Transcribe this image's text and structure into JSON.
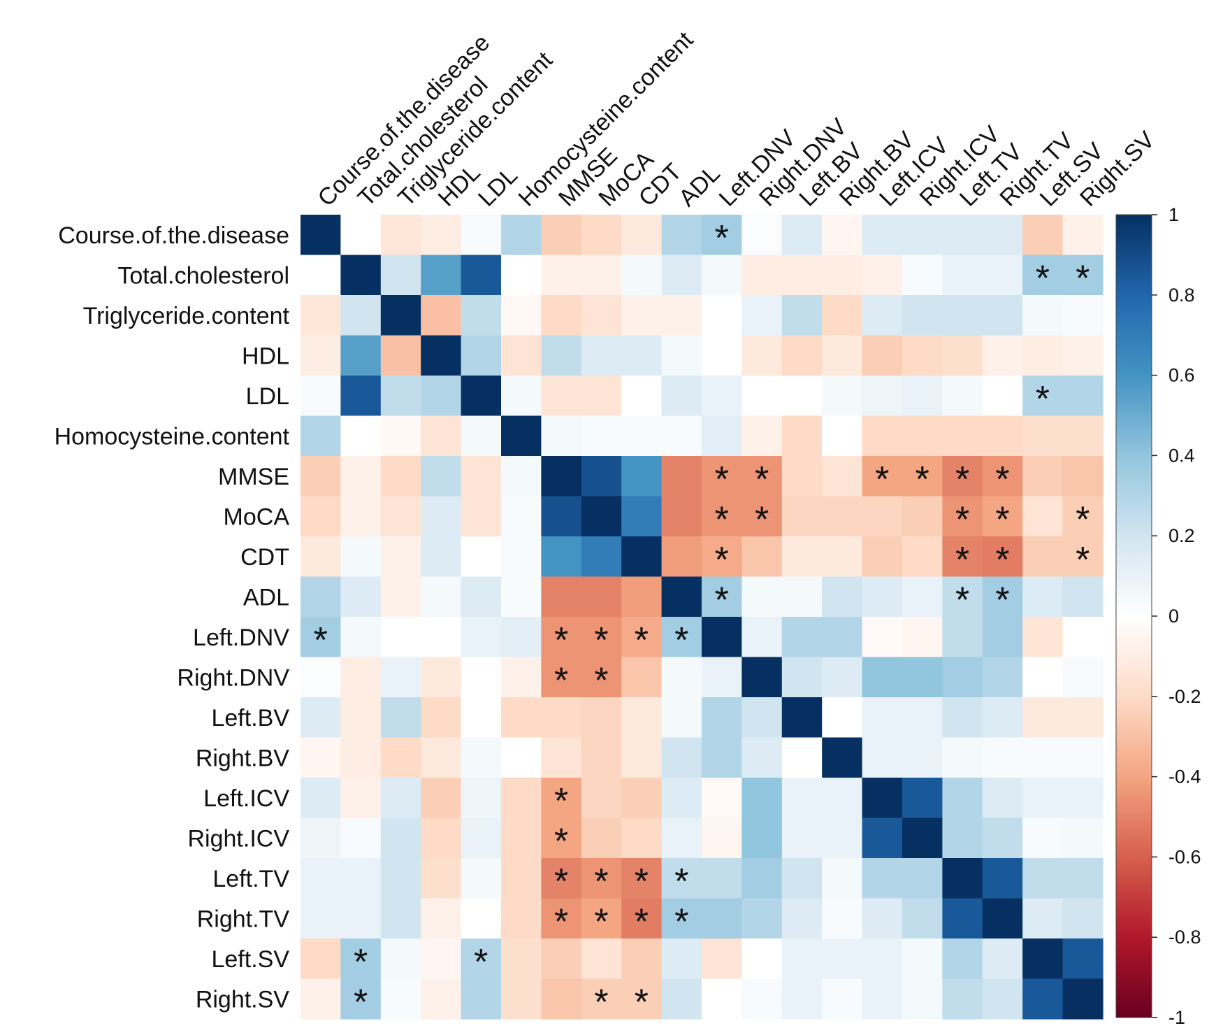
{
  "chart_data": {
    "type": "heatmap",
    "title": "",
    "variables": [
      "Course.of.the.disease",
      "Total.cholesterol",
      "Triglyceride.content",
      "HDL",
      "LDL",
      "Homocysteine.content",
      "MMSE",
      "MoCA",
      "CDT",
      "ADL",
      "Left.DNV",
      "Right.DNV",
      "Left.BV",
      "Right.BV",
      "Left.ICV",
      "Right.ICV",
      "Left.TV",
      "Right.TV",
      "Left.SV",
      "Right.SV"
    ],
    "matrix": [
      [
        1.0,
        0.0,
        -0.14,
        -0.1,
        0.03,
        0.3,
        -0.25,
        -0.2,
        -0.12,
        0.3,
        0.35,
        0.02,
        0.15,
        -0.05,
        0.15,
        0.15,
        0.15,
        0.15,
        -0.25,
        -0.08
      ],
      [
        0.0,
        1.0,
        0.2,
        0.55,
        0.85,
        0.0,
        -0.08,
        -0.08,
        0.05,
        0.15,
        0.05,
        -0.1,
        -0.1,
        -0.1,
        -0.08,
        0.03,
        0.1,
        0.1,
        0.35,
        0.35
      ],
      [
        -0.14,
        0.2,
        1.0,
        -0.3,
        0.25,
        -0.04,
        -0.2,
        -0.15,
        -0.08,
        -0.08,
        0.0,
        0.1,
        0.25,
        -0.2,
        0.15,
        0.2,
        0.2,
        0.2,
        0.05,
        0.03
      ],
      [
        -0.1,
        0.55,
        -0.3,
        1.0,
        0.3,
        -0.15,
        0.25,
        0.15,
        0.15,
        0.05,
        0.0,
        -0.12,
        -0.2,
        -0.12,
        -0.25,
        -0.2,
        -0.18,
        -0.08,
        -0.1,
        -0.08
      ],
      [
        0.03,
        0.85,
        0.25,
        0.3,
        1.0,
        0.05,
        -0.15,
        -0.15,
        0.0,
        0.15,
        0.1,
        0.0,
        0.0,
        0.05,
        0.08,
        0.1,
        0.05,
        0.0,
        0.3,
        0.3
      ],
      [
        0.3,
        0.0,
        -0.04,
        -0.15,
        0.05,
        1.0,
        0.05,
        0.03,
        0.03,
        0.03,
        0.12,
        -0.08,
        -0.2,
        0.0,
        -0.2,
        -0.2,
        -0.2,
        -0.2,
        -0.18,
        -0.18
      ],
      [
        -0.25,
        -0.08,
        -0.2,
        0.25,
        -0.15,
        0.05,
        1.0,
        0.88,
        0.6,
        -0.5,
        -0.45,
        -0.45,
        -0.2,
        -0.15,
        -0.4,
        -0.4,
        -0.5,
        -0.45,
        -0.25,
        -0.28
      ],
      [
        -0.2,
        -0.08,
        -0.15,
        0.15,
        -0.15,
        0.03,
        0.88,
        1.0,
        0.7,
        -0.5,
        -0.45,
        -0.45,
        -0.22,
        -0.22,
        -0.22,
        -0.25,
        -0.45,
        -0.4,
        -0.15,
        -0.25
      ],
      [
        -0.12,
        0.05,
        -0.08,
        0.15,
        0.0,
        0.03,
        0.6,
        0.7,
        1.0,
        -0.42,
        -0.38,
        -0.28,
        -0.12,
        -0.12,
        -0.25,
        -0.2,
        -0.5,
        -0.52,
        -0.25,
        -0.25
      ],
      [
        0.3,
        0.15,
        -0.08,
        0.05,
        0.15,
        0.03,
        -0.5,
        -0.5,
        -0.42,
        1.0,
        0.35,
        0.05,
        0.05,
        0.2,
        0.15,
        0.1,
        0.25,
        0.35,
        0.15,
        0.2
      ],
      [
        0.35,
        0.05,
        0.0,
        0.0,
        0.1,
        0.12,
        -0.45,
        -0.45,
        -0.38,
        0.35,
        1.0,
        0.1,
        0.3,
        0.3,
        -0.03,
        -0.05,
        0.25,
        0.35,
        -0.15,
        0.0
      ],
      [
        0.02,
        -0.1,
        0.1,
        -0.12,
        0.0,
        -0.08,
        -0.45,
        -0.45,
        -0.28,
        0.05,
        0.1,
        1.0,
        0.2,
        0.15,
        0.4,
        0.4,
        0.35,
        0.3,
        0.0,
        0.03
      ],
      [
        0.15,
        -0.1,
        0.25,
        -0.2,
        0.0,
        -0.2,
        -0.2,
        -0.22,
        -0.12,
        0.05,
        0.3,
        0.2,
        1.0,
        0.0,
        0.1,
        0.1,
        0.2,
        0.15,
        -0.12,
        -0.12
      ],
      [
        -0.05,
        -0.1,
        -0.2,
        -0.12,
        0.05,
        0.0,
        -0.15,
        -0.22,
        -0.12,
        0.2,
        0.3,
        0.15,
        0.0,
        1.0,
        0.1,
        0.1,
        0.05,
        0.03,
        0.03,
        0.03
      ],
      [
        0.15,
        -0.08,
        0.15,
        -0.25,
        0.08,
        -0.2,
        -0.4,
        -0.22,
        -0.25,
        0.15,
        -0.03,
        0.4,
        0.1,
        0.1,
        1.0,
        0.85,
        0.3,
        0.15,
        0.1,
        0.1
      ],
      [
        0.08,
        0.03,
        0.2,
        -0.2,
        0.1,
        -0.2,
        -0.4,
        -0.25,
        -0.2,
        0.1,
        -0.05,
        0.4,
        0.1,
        0.1,
        0.85,
        1.0,
        0.3,
        0.25,
        0.03,
        0.05
      ],
      [
        0.1,
        0.1,
        0.2,
        -0.18,
        0.05,
        -0.2,
        -0.5,
        -0.45,
        -0.5,
        0.25,
        0.25,
        0.35,
        0.2,
        0.05,
        0.3,
        0.3,
        1.0,
        0.85,
        0.25,
        0.25
      ],
      [
        0.1,
        0.1,
        0.2,
        -0.08,
        0.0,
        -0.2,
        -0.45,
        -0.4,
        -0.52,
        0.35,
        0.35,
        0.3,
        0.15,
        0.03,
        0.15,
        0.25,
        0.85,
        1.0,
        0.15,
        0.2
      ],
      [
        -0.2,
        0.35,
        0.05,
        -0.05,
        0.3,
        -0.18,
        -0.25,
        -0.15,
        -0.25,
        0.15,
        -0.15,
        0.0,
        0.1,
        0.1,
        0.1,
        0.05,
        0.3,
        0.15,
        1.0,
        0.85
      ],
      [
        -0.08,
        0.35,
        0.03,
        -0.08,
        0.3,
        -0.18,
        -0.28,
        -0.25,
        -0.25,
        0.2,
        0.0,
        0.03,
        0.1,
        0.03,
        0.1,
        0.05,
        0.25,
        0.2,
        0.85,
        1.0
      ]
    ],
    "significance_marker": "*",
    "significant_cells": [
      [
        0,
        10
      ],
      [
        1,
        18
      ],
      [
        1,
        19
      ],
      [
        4,
        18
      ],
      [
        6,
        10
      ],
      [
        6,
        11
      ],
      [
        6,
        14
      ],
      [
        6,
        15
      ],
      [
        6,
        16
      ],
      [
        6,
        17
      ],
      [
        7,
        10
      ],
      [
        7,
        11
      ],
      [
        7,
        16
      ],
      [
        7,
        17
      ],
      [
        7,
        19
      ],
      [
        8,
        10
      ],
      [
        8,
        16
      ],
      [
        8,
        17
      ],
      [
        8,
        19
      ],
      [
        9,
        10
      ],
      [
        9,
        16
      ],
      [
        9,
        17
      ],
      [
        10,
        0
      ],
      [
        10,
        6
      ],
      [
        10,
        7
      ],
      [
        10,
        8
      ],
      [
        10,
        9
      ],
      [
        11,
        6
      ],
      [
        11,
        7
      ],
      [
        14,
        6
      ],
      [
        15,
        6
      ],
      [
        16,
        6
      ],
      [
        16,
        7
      ],
      [
        16,
        8
      ],
      [
        16,
        9
      ],
      [
        17,
        6
      ],
      [
        17,
        7
      ],
      [
        17,
        8
      ],
      [
        17,
        9
      ],
      [
        18,
        1
      ],
      [
        18,
        4
      ],
      [
        19,
        1
      ],
      [
        19,
        7
      ],
      [
        19,
        8
      ]
    ],
    "color_scale": {
      "low_color": "#67001f",
      "mid_color": "#ffffff",
      "high_color": "#053061",
      "ticks": [
        1,
        0.8,
        0.6,
        0.4,
        0.2,
        0,
        -0.2,
        -0.4,
        -0.6,
        -0.8,
        -1
      ],
      "tick_labels": [
        "1",
        "0.8",
        "0.6",
        "0.4",
        "0.2",
        "0",
        "-0.2",
        "-0.4",
        "-0.6",
        "-0.8",
        "-1"
      ],
      "range": [
        -1,
        1
      ]
    },
    "legend": "right"
  }
}
